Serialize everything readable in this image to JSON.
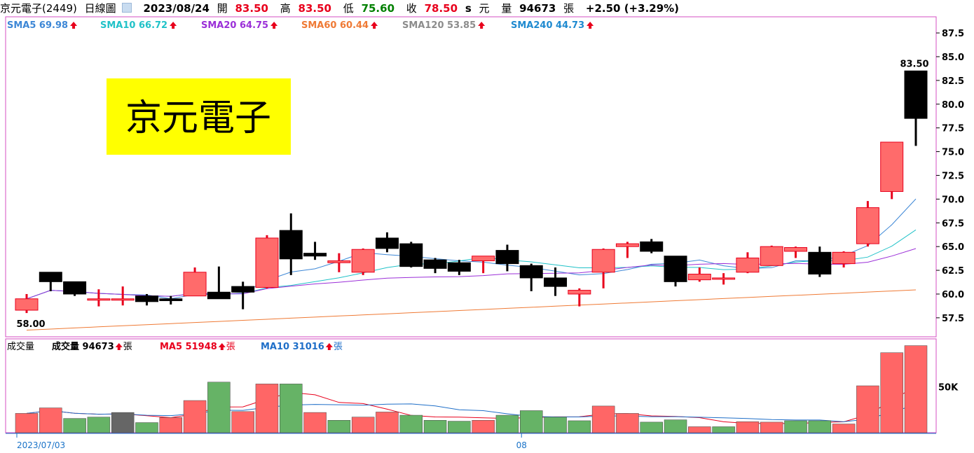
{
  "header": {
    "stock": "京元電子(2449)",
    "chart_kind": "日線圖",
    "date": "2023/08/24",
    "open_label": "開",
    "open": "83.50",
    "high_label": "高",
    "high": "83.50",
    "low_label": "低",
    "low": "75.60",
    "close_label": "收",
    "close": "78.50",
    "unit_s": "s",
    "unit_yuan": "元",
    "vol_label": "量",
    "vol": "94673",
    "vol_unit": "張",
    "change": "+2.50 (+3.29%)"
  },
  "title_box": "京元電子",
  "ma_legend": [
    {
      "label": "SMA5 69.98",
      "color": "#3d87d6"
    },
    {
      "label": "SMA10 66.72",
      "color": "#21c2c8"
    },
    {
      "label": "SMA20 64.75",
      "color": "#9b2fd8"
    },
    {
      "label": "SMA60 60.44",
      "color": "#ef7a35"
    },
    {
      "label": "SMA120 53.85",
      "color": "#8c8c8c"
    },
    {
      "label": "SMA240 44.73",
      "color": "#1f8ad0"
    }
  ],
  "vol_legend": {
    "title": "成交量",
    "vol_label": "成交量 94673",
    "vol_unit": "張",
    "ma5_label": "MA5 51948",
    "ma5_unit": "張",
    "ma10_label": "MA10 31016",
    "ma10_unit": "張"
  },
  "colors": {
    "up": "#ff6b6b",
    "down": "#000000",
    "vol_up": "#ff6666",
    "vol_down": "#66b366",
    "vol_flat": "#666666",
    "border": "#d44fc3",
    "arrow_red": "#e8001c"
  },
  "chart_data": {
    "type": "candlestick",
    "price_ticks": [
      "87.5",
      "85.0",
      "82.5",
      "80.0",
      "77.5",
      "75.0",
      "72.5",
      "70.0",
      "67.5",
      "65.0",
      "62.5",
      "60.0",
      "57.5"
    ],
    "price_range": [
      55.5,
      89.2
    ],
    "max_label": "83.50",
    "min_label": "58.00",
    "volume_tick": "50K",
    "x_labels": [
      {
        "index": 0,
        "label": "2023/07/03"
      },
      {
        "index": 21,
        "label": "08"
      }
    ],
    "candles": [
      {
        "o": 58.3,
        "h": 60.0,
        "l": 58.0,
        "c": 59.5,
        "v": 21000
      },
      {
        "o": 62.3,
        "h": 62.3,
        "l": 60.3,
        "c": 61.3,
        "v": 27000
      },
      {
        "o": 61.3,
        "h": 61.3,
        "l": 59.8,
        "c": 60.0,
        "v": 15500
      },
      {
        "o": 59.5,
        "h": 60.5,
        "l": 58.7,
        "c": 59.5,
        "v": 17000
      },
      {
        "o": 59.5,
        "h": 60.8,
        "l": 58.8,
        "c": 59.5,
        "v": 22000
      },
      {
        "o": 59.8,
        "h": 60.0,
        "l": 58.8,
        "c": 59.2,
        "v": 11000
      },
      {
        "o": 59.5,
        "h": 59.8,
        "l": 58.9,
        "c": 59.3,
        "v": 16500
      },
      {
        "o": 59.8,
        "h": 62.8,
        "l": 59.8,
        "c": 62.3,
        "v": 35000
      },
      {
        "o": 60.2,
        "h": 62.9,
        "l": 59.5,
        "c": 59.5,
        "v": 55000
      },
      {
        "o": 60.8,
        "h": 61.3,
        "l": 58.4,
        "c": 60.2,
        "v": 23000
      },
      {
        "o": 60.7,
        "h": 66.2,
        "l": 60.6,
        "c": 65.9,
        "v": 53000
      },
      {
        "o": 66.7,
        "h": 68.5,
        "l": 62.0,
        "c": 63.7,
        "v": 53000
      },
      {
        "o": 64.3,
        "h": 65.5,
        "l": 63.6,
        "c": 64.0,
        "v": 22000
      },
      {
        "o": 63.3,
        "h": 64.3,
        "l": 62.3,
        "c": 63.5,
        "v": 13500
      },
      {
        "o": 62.3,
        "h": 64.8,
        "l": 62.0,
        "c": 64.7,
        "v": 17000
      },
      {
        "o": 65.9,
        "h": 66.5,
        "l": 64.4,
        "c": 64.8,
        "v": 22500
      },
      {
        "o": 65.3,
        "h": 65.5,
        "l": 62.8,
        "c": 62.9,
        "v": 19000
      },
      {
        "o": 63.6,
        "h": 63.8,
        "l": 62.2,
        "c": 62.7,
        "v": 13500
      },
      {
        "o": 63.3,
        "h": 63.6,
        "l": 62.0,
        "c": 62.4,
        "v": 12500
      },
      {
        "o": 63.5,
        "h": 64.0,
        "l": 62.2,
        "c": 64.0,
        "v": 13500
      },
      {
        "o": 64.6,
        "h": 65.2,
        "l": 62.4,
        "c": 63.2,
        "v": 19000
      },
      {
        "o": 63.0,
        "h": 63.2,
        "l": 60.3,
        "c": 61.7,
        "v": 24000
      },
      {
        "o": 61.7,
        "h": 62.8,
        "l": 59.8,
        "c": 60.8,
        "v": 17000
      },
      {
        "o": 60.0,
        "h": 60.6,
        "l": 58.7,
        "c": 60.4,
        "v": 13000
      },
      {
        "o": 62.3,
        "h": 64.8,
        "l": 60.6,
        "c": 64.7,
        "v": 29000
      },
      {
        "o": 65.0,
        "h": 65.5,
        "l": 63.8,
        "c": 65.3,
        "v": 21000
      },
      {
        "o": 65.5,
        "h": 65.8,
        "l": 64.3,
        "c": 64.5,
        "v": 11500
      },
      {
        "o": 64.0,
        "h": 64.0,
        "l": 60.8,
        "c": 61.3,
        "v": 14000
      },
      {
        "o": 61.5,
        "h": 62.8,
        "l": 61.3,
        "c": 62.1,
        "v": 6500
      },
      {
        "o": 61.7,
        "h": 62.2,
        "l": 61.0,
        "c": 61.7,
        "v": 6500
      },
      {
        "o": 62.3,
        "h": 64.4,
        "l": 62.2,
        "c": 63.8,
        "v": 12000
      },
      {
        "o": 63.0,
        "h": 65.1,
        "l": 63.0,
        "c": 65.0,
        "v": 11500
      },
      {
        "o": 64.5,
        "h": 65.0,
        "l": 63.8,
        "c": 64.9,
        "v": 13000
      },
      {
        "o": 64.4,
        "h": 65.0,
        "l": 61.8,
        "c": 62.1,
        "v": 13000
      },
      {
        "o": 63.2,
        "h": 64.5,
        "l": 62.8,
        "c": 64.4,
        "v": 9500
      },
      {
        "o": 65.3,
        "h": 69.8,
        "l": 65.0,
        "c": 69.1,
        "v": 51000
      },
      {
        "o": 70.8,
        "h": 76.0,
        "l": 70.0,
        "c": 76.0,
        "v": 87000
      },
      {
        "o": 83.5,
        "h": 83.5,
        "l": 75.6,
        "c": 78.5,
        "v": 94673
      }
    ]
  }
}
